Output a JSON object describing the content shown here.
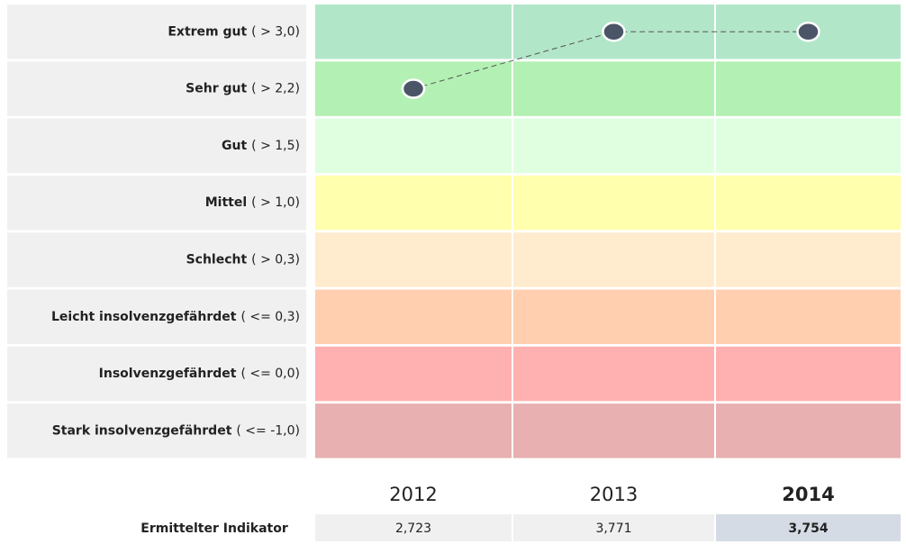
{
  "chart_data": {
    "type": "rating-bands",
    "bands": [
      {
        "name": "Extrem gut",
        "threshold": {
          "value": 3.0,
          "label": "( > 3,0)"
        },
        "color": "#b2e6c9"
      },
      {
        "name": "Sehr gut",
        "threshold": {
          "value": 2.2,
          "label": "( > 2,2)"
        },
        "color": "#b3f0b3"
      },
      {
        "name": "Gut",
        "threshold": {
          "value": 1.5,
          "label": "( > 1,5)"
        },
        "color": "#e0ffe0"
      },
      {
        "name": "Mittel",
        "threshold": {
          "value": 1.0,
          "label": "( > 1,0)"
        },
        "color": "#ffffad"
      },
      {
        "name": "Schlecht",
        "threshold": {
          "value": 0.3,
          "label": "( > 0,3)"
        },
        "color": "#ffebcd"
      },
      {
        "name": "Leicht insolvenzgefährdet",
        "threshold": {
          "value": 0.3,
          "label": "( <= 0,3)"
        },
        "color": "#ffcfb0"
      },
      {
        "name": "Insolvenzgefährdet",
        "threshold": {
          "value": 0.0,
          "label": "( <= 0,0)"
        },
        "color": "#ffb0b0"
      },
      {
        "name": "Stark insolvenzgefährdet",
        "threshold": {
          "value": -1.0,
          "label": "( <= -1,0)"
        },
        "color": "#e8b0b0"
      }
    ],
    "categories": [
      "2012",
      "2013",
      "2014"
    ],
    "highlight_category": "2014",
    "row_label": "Ermittelter Indikator",
    "values": [
      2.723,
      3.771,
      3.754
    ],
    "value_labels": [
      "2,723",
      "3,771",
      "3,754"
    ],
    "point_color": "#4a5568"
  }
}
